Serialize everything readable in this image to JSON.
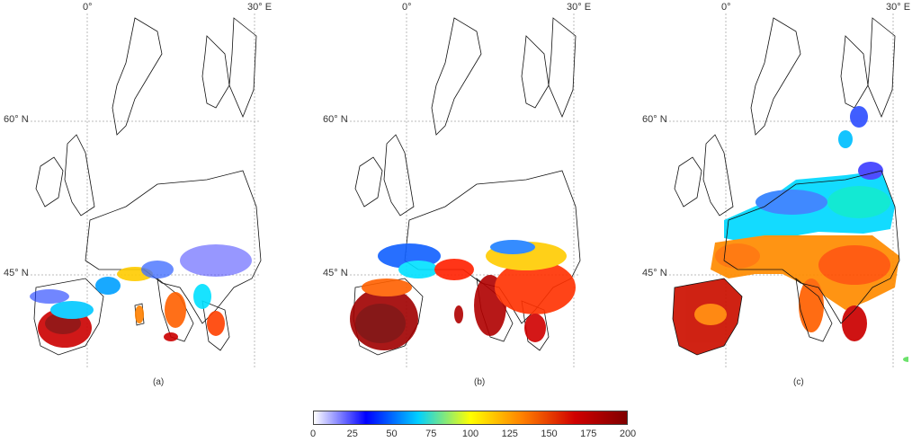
{
  "panels": [
    {
      "id": "a",
      "label": "(a)",
      "lon0": "0°",
      "lon30": "30° E",
      "lat60": "60° N",
      "lat45": "45° N"
    },
    {
      "id": "b",
      "label": "(b)",
      "lon0": "0°",
      "lon30": "30° E",
      "lat60": "60° N",
      "lat45": "45° N"
    },
    {
      "id": "c",
      "label": "(c)",
      "lon0": "0°",
      "lon30": "30° E",
      "lat60": "60° N",
      "lat45": "45° N"
    }
  ],
  "colorbar": {
    "ticks": [
      "0",
      "25",
      "50",
      "75",
      "100",
      "125",
      "150",
      "175",
      "200"
    ],
    "colors": [
      "#ffffff",
      "#0000ff",
      "#00d0ff",
      "#ffff00",
      "#ff8000",
      "#d00000",
      "#800000"
    ]
  }
}
